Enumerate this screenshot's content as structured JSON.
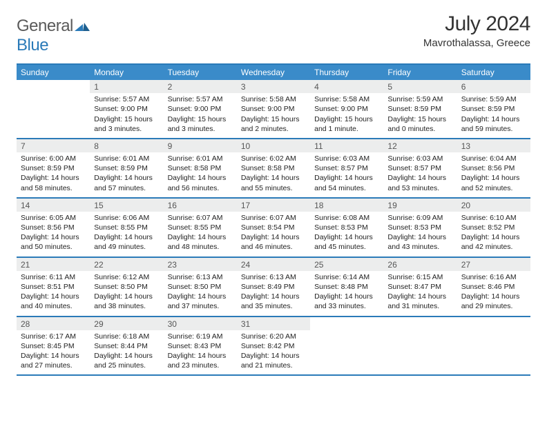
{
  "logo": {
    "word1": "General",
    "word2": "Blue"
  },
  "title": "July 2024",
  "location": "Mavrothalassa, Greece",
  "colors": {
    "accent": "#2a7ab8",
    "header_bg": "#3a8bc9",
    "daynum_bg": "#eceded",
    "text": "#222222"
  },
  "days_of_week": [
    "Sunday",
    "Monday",
    "Tuesday",
    "Wednesday",
    "Thursday",
    "Friday",
    "Saturday"
  ],
  "weeks": [
    [
      {
        "n": "",
        "sr": "",
        "ss": "",
        "dl": ""
      },
      {
        "n": "1",
        "sr": "Sunrise: 5:57 AM",
        "ss": "Sunset: 9:00 PM",
        "dl": "Daylight: 15 hours and 3 minutes."
      },
      {
        "n": "2",
        "sr": "Sunrise: 5:57 AM",
        "ss": "Sunset: 9:00 PM",
        "dl": "Daylight: 15 hours and 3 minutes."
      },
      {
        "n": "3",
        "sr": "Sunrise: 5:58 AM",
        "ss": "Sunset: 9:00 PM",
        "dl": "Daylight: 15 hours and 2 minutes."
      },
      {
        "n": "4",
        "sr": "Sunrise: 5:58 AM",
        "ss": "Sunset: 9:00 PM",
        "dl": "Daylight: 15 hours and 1 minute."
      },
      {
        "n": "5",
        "sr": "Sunrise: 5:59 AM",
        "ss": "Sunset: 8:59 PM",
        "dl": "Daylight: 15 hours and 0 minutes."
      },
      {
        "n": "6",
        "sr": "Sunrise: 5:59 AM",
        "ss": "Sunset: 8:59 PM",
        "dl": "Daylight: 14 hours and 59 minutes."
      }
    ],
    [
      {
        "n": "7",
        "sr": "Sunrise: 6:00 AM",
        "ss": "Sunset: 8:59 PM",
        "dl": "Daylight: 14 hours and 58 minutes."
      },
      {
        "n": "8",
        "sr": "Sunrise: 6:01 AM",
        "ss": "Sunset: 8:59 PM",
        "dl": "Daylight: 14 hours and 57 minutes."
      },
      {
        "n": "9",
        "sr": "Sunrise: 6:01 AM",
        "ss": "Sunset: 8:58 PM",
        "dl": "Daylight: 14 hours and 56 minutes."
      },
      {
        "n": "10",
        "sr": "Sunrise: 6:02 AM",
        "ss": "Sunset: 8:58 PM",
        "dl": "Daylight: 14 hours and 55 minutes."
      },
      {
        "n": "11",
        "sr": "Sunrise: 6:03 AM",
        "ss": "Sunset: 8:57 PM",
        "dl": "Daylight: 14 hours and 54 minutes."
      },
      {
        "n": "12",
        "sr": "Sunrise: 6:03 AM",
        "ss": "Sunset: 8:57 PM",
        "dl": "Daylight: 14 hours and 53 minutes."
      },
      {
        "n": "13",
        "sr": "Sunrise: 6:04 AM",
        "ss": "Sunset: 8:56 PM",
        "dl": "Daylight: 14 hours and 52 minutes."
      }
    ],
    [
      {
        "n": "14",
        "sr": "Sunrise: 6:05 AM",
        "ss": "Sunset: 8:56 PM",
        "dl": "Daylight: 14 hours and 50 minutes."
      },
      {
        "n": "15",
        "sr": "Sunrise: 6:06 AM",
        "ss": "Sunset: 8:55 PM",
        "dl": "Daylight: 14 hours and 49 minutes."
      },
      {
        "n": "16",
        "sr": "Sunrise: 6:07 AM",
        "ss": "Sunset: 8:55 PM",
        "dl": "Daylight: 14 hours and 48 minutes."
      },
      {
        "n": "17",
        "sr": "Sunrise: 6:07 AM",
        "ss": "Sunset: 8:54 PM",
        "dl": "Daylight: 14 hours and 46 minutes."
      },
      {
        "n": "18",
        "sr": "Sunrise: 6:08 AM",
        "ss": "Sunset: 8:53 PM",
        "dl": "Daylight: 14 hours and 45 minutes."
      },
      {
        "n": "19",
        "sr": "Sunrise: 6:09 AM",
        "ss": "Sunset: 8:53 PM",
        "dl": "Daylight: 14 hours and 43 minutes."
      },
      {
        "n": "20",
        "sr": "Sunrise: 6:10 AM",
        "ss": "Sunset: 8:52 PM",
        "dl": "Daylight: 14 hours and 42 minutes."
      }
    ],
    [
      {
        "n": "21",
        "sr": "Sunrise: 6:11 AM",
        "ss": "Sunset: 8:51 PM",
        "dl": "Daylight: 14 hours and 40 minutes."
      },
      {
        "n": "22",
        "sr": "Sunrise: 6:12 AM",
        "ss": "Sunset: 8:50 PM",
        "dl": "Daylight: 14 hours and 38 minutes."
      },
      {
        "n": "23",
        "sr": "Sunrise: 6:13 AM",
        "ss": "Sunset: 8:50 PM",
        "dl": "Daylight: 14 hours and 37 minutes."
      },
      {
        "n": "24",
        "sr": "Sunrise: 6:13 AM",
        "ss": "Sunset: 8:49 PM",
        "dl": "Daylight: 14 hours and 35 minutes."
      },
      {
        "n": "25",
        "sr": "Sunrise: 6:14 AM",
        "ss": "Sunset: 8:48 PM",
        "dl": "Daylight: 14 hours and 33 minutes."
      },
      {
        "n": "26",
        "sr": "Sunrise: 6:15 AM",
        "ss": "Sunset: 8:47 PM",
        "dl": "Daylight: 14 hours and 31 minutes."
      },
      {
        "n": "27",
        "sr": "Sunrise: 6:16 AM",
        "ss": "Sunset: 8:46 PM",
        "dl": "Daylight: 14 hours and 29 minutes."
      }
    ],
    [
      {
        "n": "28",
        "sr": "Sunrise: 6:17 AM",
        "ss": "Sunset: 8:45 PM",
        "dl": "Daylight: 14 hours and 27 minutes."
      },
      {
        "n": "29",
        "sr": "Sunrise: 6:18 AM",
        "ss": "Sunset: 8:44 PM",
        "dl": "Daylight: 14 hours and 25 minutes."
      },
      {
        "n": "30",
        "sr": "Sunrise: 6:19 AM",
        "ss": "Sunset: 8:43 PM",
        "dl": "Daylight: 14 hours and 23 minutes."
      },
      {
        "n": "31",
        "sr": "Sunrise: 6:20 AM",
        "ss": "Sunset: 8:42 PM",
        "dl": "Daylight: 14 hours and 21 minutes."
      },
      {
        "n": "",
        "sr": "",
        "ss": "",
        "dl": ""
      },
      {
        "n": "",
        "sr": "",
        "ss": "",
        "dl": ""
      },
      {
        "n": "",
        "sr": "",
        "ss": "",
        "dl": ""
      }
    ]
  ]
}
